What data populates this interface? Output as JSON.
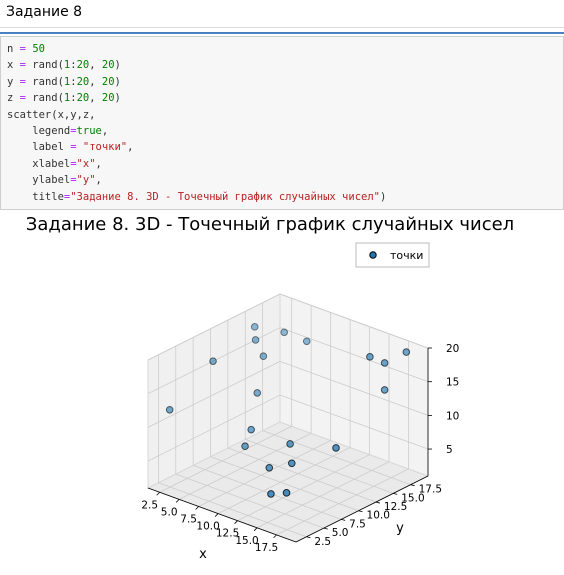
{
  "heading": "Задание 8",
  "code": {
    "lines": [
      [
        {
          "t": "n "
        },
        {
          "t": "=",
          "c": "op"
        },
        {
          "t": " "
        },
        {
          "t": "50",
          "c": "num"
        }
      ],
      [
        {
          "t": "x "
        },
        {
          "t": "=",
          "c": "op"
        },
        {
          "t": " rand("
        },
        {
          "t": "1",
          "c": "num"
        },
        {
          "t": ":"
        },
        {
          "t": "20",
          "c": "num"
        },
        {
          "t": ", "
        },
        {
          "t": "20",
          "c": "num"
        },
        {
          "t": ")"
        }
      ],
      [
        {
          "t": "y "
        },
        {
          "t": "=",
          "c": "op"
        },
        {
          "t": " rand("
        },
        {
          "t": "1",
          "c": "num"
        },
        {
          "t": ":"
        },
        {
          "t": "20",
          "c": "num"
        },
        {
          "t": ", "
        },
        {
          "t": "20",
          "c": "num"
        },
        {
          "t": ")"
        }
      ],
      [
        {
          "t": "z "
        },
        {
          "t": "=",
          "c": "op"
        },
        {
          "t": " rand("
        },
        {
          "t": "1",
          "c": "num"
        },
        {
          "t": ":"
        },
        {
          "t": "20",
          "c": "num"
        },
        {
          "t": ", "
        },
        {
          "t": "20",
          "c": "num"
        },
        {
          "t": ")"
        }
      ],
      [
        {
          "t": "scatter(x,y,z,"
        }
      ],
      [
        {
          "t": "    legend"
        },
        {
          "t": "=",
          "c": "op"
        },
        {
          "t": "true",
          "c": "kw"
        },
        {
          "t": ","
        }
      ],
      [
        {
          "t": "    label "
        },
        {
          "t": "=",
          "c": "op"
        },
        {
          "t": " "
        },
        {
          "t": "\"точки\"",
          "c": "str"
        },
        {
          "t": ","
        }
      ],
      [
        {
          "t": "    xlabel"
        },
        {
          "t": "=",
          "c": "op"
        },
        {
          "t": "\"x\"",
          "c": "str"
        },
        {
          "t": ","
        }
      ],
      [
        {
          "t": "    ylabel"
        },
        {
          "t": "=",
          "c": "op"
        },
        {
          "t": "\"y\"",
          "c": "str"
        },
        {
          "t": ","
        }
      ],
      [
        {
          "t": "    title"
        },
        {
          "t": "=",
          "c": "op"
        },
        {
          "t": "\"Задание 8. 3D - Точечный график случайных чисел\"",
          "c": "str"
        },
        {
          "t": ")"
        }
      ]
    ]
  },
  "colors": {
    "num": "#008000",
    "str": "#ba2121",
    "op": "#aa22ff",
    "kw": "#008000",
    "marker_fill": "#1f77b4",
    "marker_edge": "#000000"
  },
  "chart_data": {
    "type": "scatter",
    "title": "Задание 8. 3D - Точечный график случайных чисел",
    "xlabel": "x",
    "ylabel": "y",
    "zlabel": "",
    "xticks": [
      "2.5",
      "5.0",
      "7.5",
      "10.0",
      "12.5",
      "15.0",
      "17.5"
    ],
    "yticks": [
      "2.5",
      "5.0",
      "7.5",
      "10.0",
      "12.5",
      "15.0",
      "17.5"
    ],
    "zticks": [
      "5",
      "10",
      "15",
      "20"
    ],
    "xlim": [
      1,
      20
    ],
    "ylim": [
      1,
      20
    ],
    "zlim": [
      1,
      20
    ],
    "grid": true,
    "legend": "top-right",
    "series": [
      {
        "name": "точки",
        "points": [
          {
            "x": 2,
            "y": 3,
            "z": 12
          },
          {
            "x": 4,
            "y": 7,
            "z": 18
          },
          {
            "x": 6,
            "y": 12,
            "z": 17
          },
          {
            "x": 4,
            "y": 13,
            "z": 20
          },
          {
            "x": 5,
            "y": 12,
            "z": 19
          },
          {
            "x": 6,
            "y": 15,
            "z": 19
          },
          {
            "x": 8,
            "y": 16,
            "z": 18
          },
          {
            "x": 7,
            "y": 10,
            "z": 13
          },
          {
            "x": 8,
            "y": 8,
            "z": 9
          },
          {
            "x": 9,
            "y": 6,
            "z": 8
          },
          {
            "x": 13,
            "y": 8,
            "z": 9
          },
          {
            "x": 17,
            "y": 15,
            "z": 20
          },
          {
            "x": 18,
            "y": 16,
            "z": 19
          },
          {
            "x": 19,
            "y": 18,
            "z": 20
          },
          {
            "x": 18,
            "y": 16,
            "z": 15
          },
          {
            "x": 13,
            "y": 5,
            "z": 7
          },
          {
            "x": 15,
            "y": 6,
            "z": 8
          },
          {
            "x": 18,
            "y": 9,
            "z": 10
          },
          {
            "x": 15,
            "y": 3,
            "z": 5
          },
          {
            "x": 17,
            "y": 3,
            "z": 6
          }
        ]
      }
    ]
  }
}
